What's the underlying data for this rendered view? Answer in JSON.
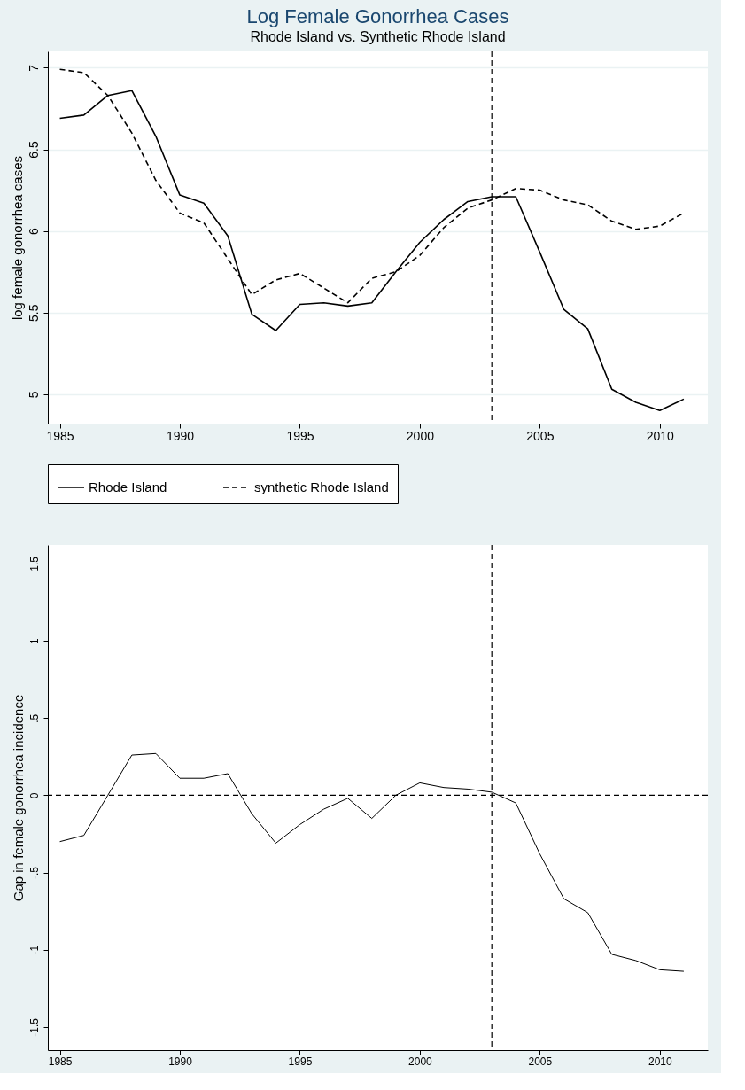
{
  "chart_data": [
    {
      "type": "line",
      "title": "Log Female Gonorrhea Cases",
      "subtitle": "Rhode Island vs. Synthetic Rhode Island",
      "ylabel": "log female gonorrhea cases",
      "x": [
        1985,
        1986,
        1987,
        1988,
        1989,
        1990,
        1991,
        1992,
        1993,
        1994,
        1995,
        1996,
        1997,
        1998,
        1999,
        2000,
        2001,
        2002,
        2003,
        2004,
        2005,
        2006,
        2007,
        2008,
        2009,
        2010,
        2011
      ],
      "series": [
        {
          "name": "Rhode Island",
          "color": "#000000",
          "line_style": "solid",
          "values": [
            6.69,
            6.71,
            6.83,
            6.86,
            6.58,
            6.22,
            6.17,
            5.97,
            5.49,
            5.39,
            5.55,
            5.56,
            5.54,
            5.56,
            5.75,
            5.93,
            6.07,
            6.18,
            6.21,
            6.21,
            5.87,
            5.52,
            5.4,
            5.03,
            4.95,
            4.9,
            4.97
          ]
        },
        {
          "name": "synthetic Rhode Island",
          "color": "#000000",
          "line_style": "dashed",
          "values": [
            6.99,
            6.97,
            6.83,
            6.6,
            6.31,
            6.11,
            6.05,
            5.83,
            5.61,
            5.7,
            5.74,
            5.65,
            5.56,
            5.71,
            5.75,
            5.85,
            6.02,
            6.14,
            6.19,
            6.26,
            6.25,
            6.19,
            6.16,
            6.06,
            6.01,
            6.03,
            6.11
          ]
        }
      ],
      "xlim": [
        1984.5,
        2012
      ],
      "xticks": [
        1985,
        1990,
        1995,
        2000,
        2005,
        2010
      ],
      "ylim": [
        4.82,
        7.1
      ],
      "yticks": [
        5,
        5.5,
        6,
        6.5,
        7
      ],
      "ref_lines": [
        {
          "axis": "x",
          "value": 2003,
          "color": "#000000",
          "line_style": "dashed"
        }
      ],
      "grid": "y",
      "legend": "bottom",
      "marker": "none"
    },
    {
      "type": "line",
      "ylabel": "Gap in female gonorrhea incidence",
      "x": [
        1985,
        1986,
        1987,
        1988,
        1989,
        1990,
        1991,
        1992,
        1993,
        1994,
        1995,
        1996,
        1997,
        1998,
        1999,
        2000,
        2001,
        2002,
        2003,
        2004,
        2005,
        2006,
        2007,
        2008,
        2009,
        2010,
        2011
      ],
      "series": [
        {
          "color": "#000000",
          "line_style": "solid",
          "values": [
            -0.3,
            -0.26,
            0.0,
            0.26,
            0.27,
            0.11,
            0.11,
            0.14,
            -0.12,
            -0.31,
            -0.19,
            -0.09,
            -0.02,
            -0.15,
            0.0,
            0.08,
            0.05,
            0.04,
            0.02,
            -0.05,
            -0.38,
            -0.67,
            -0.76,
            -1.03,
            -1.07,
            -1.13,
            -1.14
          ]
        }
      ],
      "xlim": [
        1984.5,
        2012
      ],
      "xticks": [
        1985,
        1990,
        1995,
        2000,
        2005,
        2010
      ],
      "ylim": [
        -1.65,
        1.62
      ],
      "yticks": [
        {
          "value": -1.5,
          "label": "-1.5"
        },
        {
          "value": -1,
          "label": "-1"
        },
        {
          "value": -0.5,
          "label": "-.5"
        },
        0,
        {
          "value": 0.5,
          "label": ".5"
        },
        1,
        {
          "value": 1.5,
          "label": "1.5"
        }
      ],
      "ref_lines": [
        {
          "axis": "x",
          "value": 2003,
          "color": "#000000",
          "line_style": "dashed"
        },
        {
          "axis": "y",
          "value": 0,
          "color": "#000000",
          "line_style": "dashed"
        }
      ],
      "grid": false,
      "legend": false,
      "marker": "none"
    }
  ]
}
